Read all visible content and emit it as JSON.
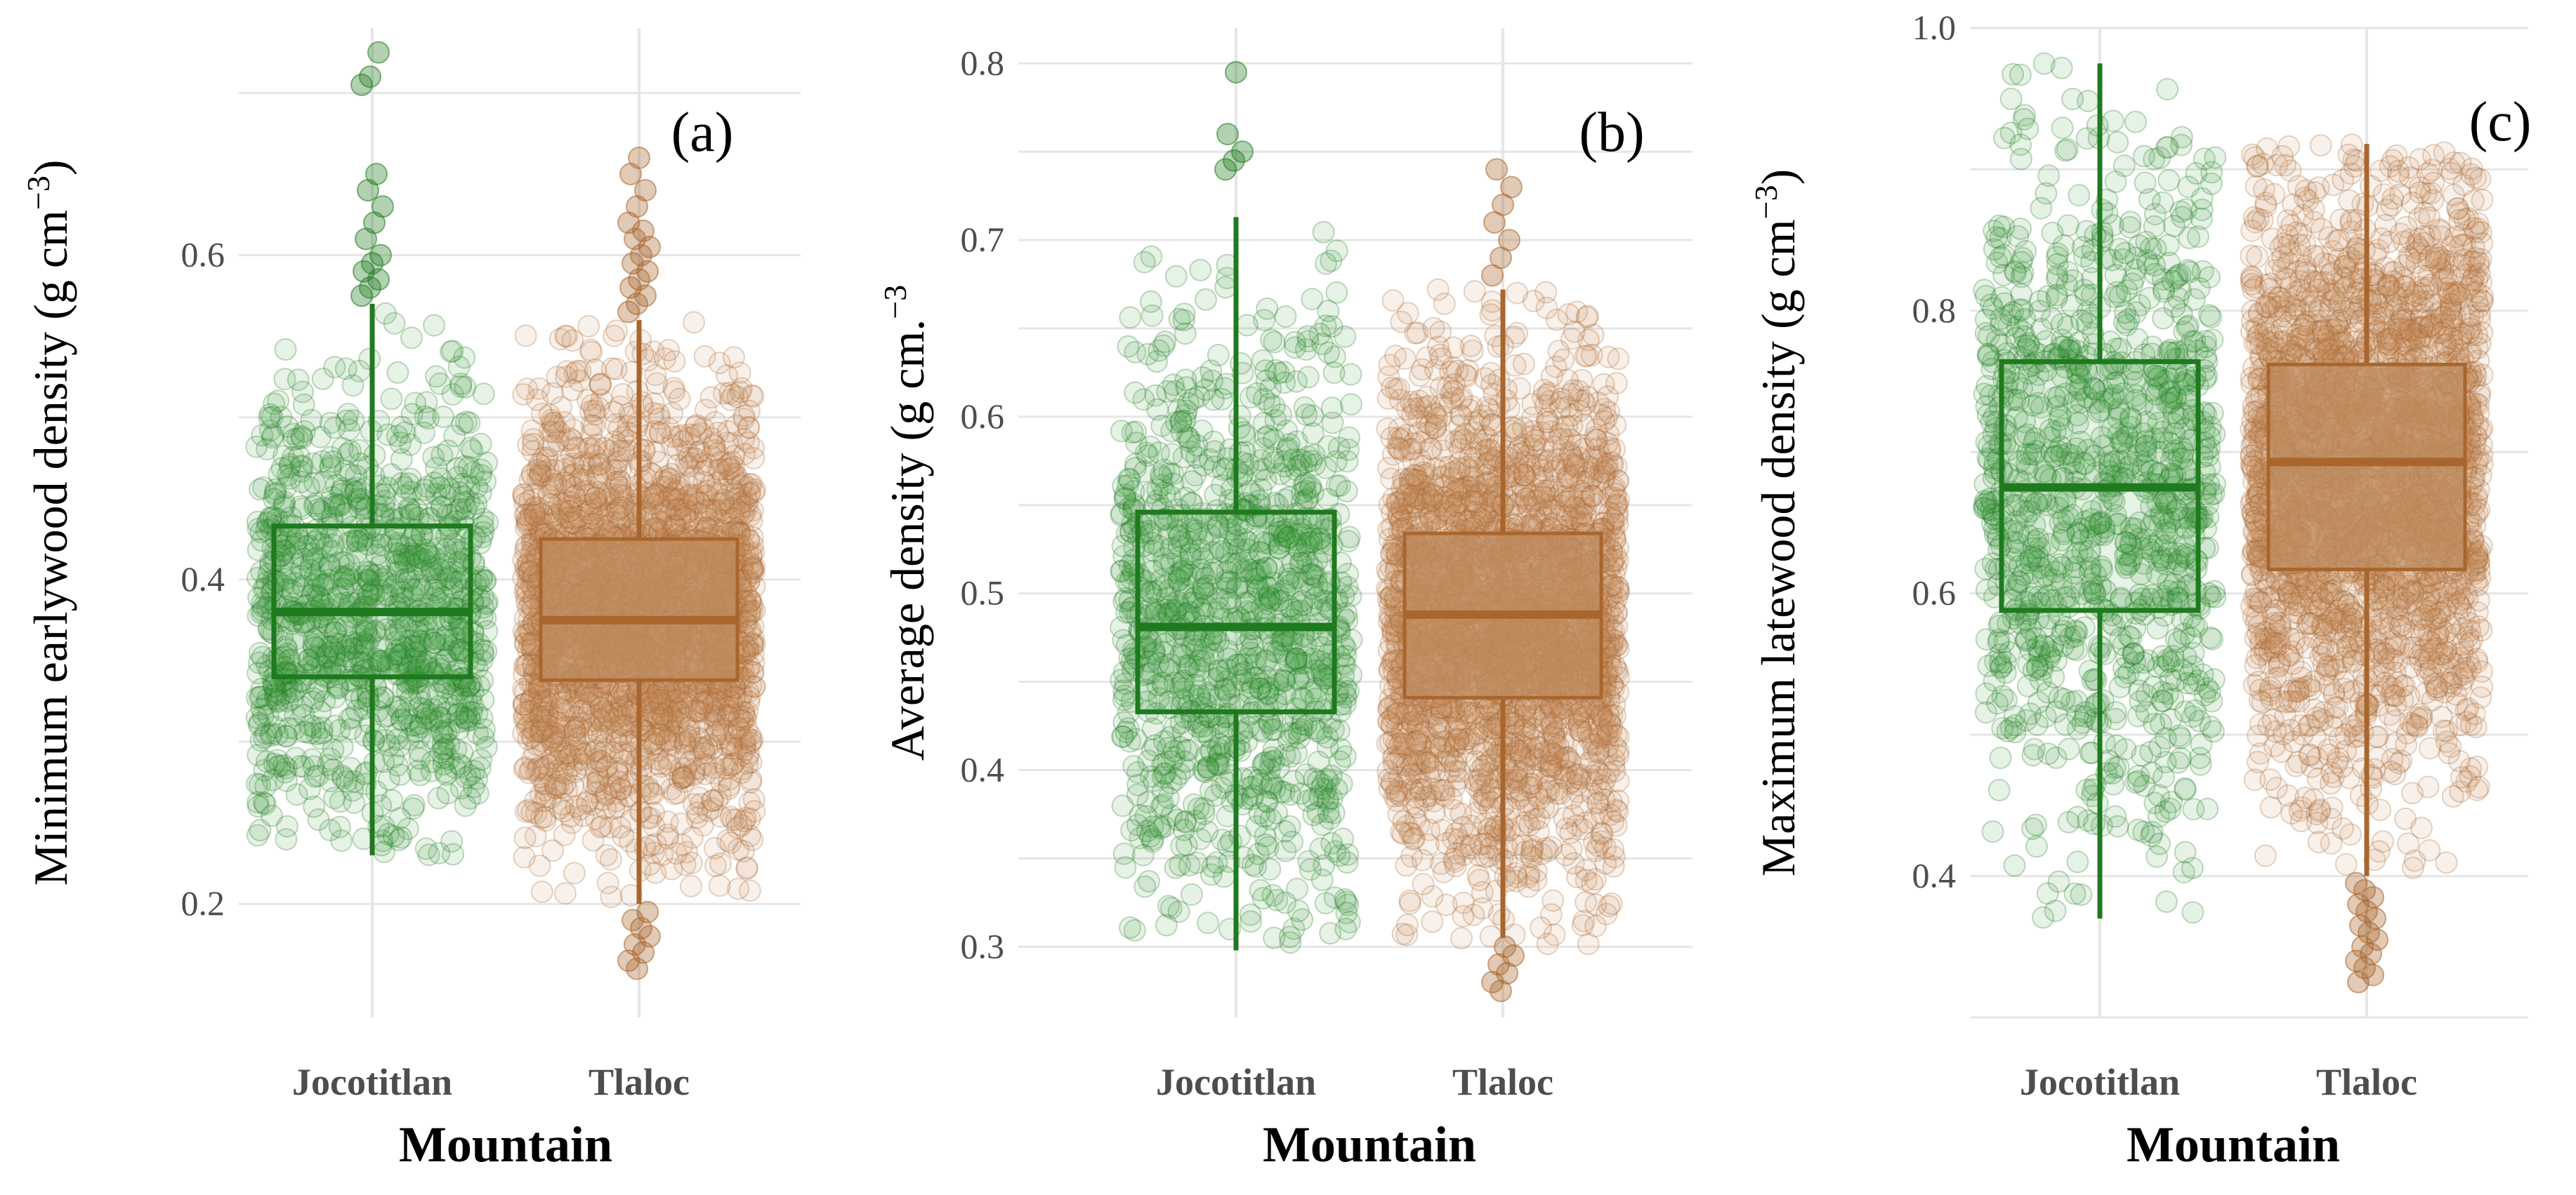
{
  "colors": {
    "jocotitlan": "#1f7a1f",
    "jocotitlan_fill": "#3c9a3c",
    "tlaloc": "#a8662e",
    "tlaloc_fill": "#c99466",
    "grid": "#e6e6e6"
  },
  "chart_data": [
    {
      "type": "boxplot",
      "panel_tag": "(a)",
      "ylabel_main": "Minimum earlywood density (g cm",
      "ylabel_sup": "−3",
      "ylabel_end": ")",
      "xlabel": "Mountain",
      "categories": [
        "Jocotitlan",
        "Tlaloc"
      ],
      "ylim": [
        0.13,
        0.74
      ],
      "yticks": [
        0.2,
        0.4,
        0.6
      ],
      "ytick_labels": [
        "0.2",
        "0.4",
        "0.6"
      ],
      "boxes": [
        {
          "name": "Jocotitlan",
          "whisker_low": 0.23,
          "q1": 0.34,
          "median": 0.38,
          "q3": 0.433,
          "whisker_high": 0.57,
          "n_points": 1100,
          "spread_low": 0.23,
          "spread_high": 0.57,
          "outliers": [
            0.575,
            0.58,
            0.585,
            0.59,
            0.595,
            0.6,
            0.61,
            0.62,
            0.63,
            0.64,
            0.65,
            0.705,
            0.71,
            0.725
          ]
        },
        {
          "name": "Tlaloc",
          "whisker_low": 0.2,
          "q1": 0.338,
          "median": 0.375,
          "q3": 0.425,
          "whisker_high": 0.56,
          "n_points": 2600,
          "spread_low": 0.2,
          "spread_high": 0.56,
          "outliers": [
            0.565,
            0.57,
            0.575,
            0.58,
            0.585,
            0.59,
            0.595,
            0.6,
            0.605,
            0.61,
            0.615,
            0.62,
            0.63,
            0.64,
            0.65,
            0.66,
            0.195,
            0.19,
            0.185,
            0.18,
            0.175,
            0.17,
            0.165,
            0.16
          ]
        }
      ]
    },
    {
      "type": "boxplot",
      "panel_tag": "(b)",
      "ylabel_main": "Average density (g cm.",
      "ylabel_sup": "−3",
      "ylabel_end": "",
      "xlabel": "Mountain",
      "categories": [
        "Jocotitlan",
        "Tlaloc"
      ],
      "ylim": [
        0.26,
        0.82
      ],
      "yticks": [
        0.3,
        0.4,
        0.5,
        0.6,
        0.7,
        0.8
      ],
      "ytick_labels": [
        "0.3",
        "0.4",
        "0.5",
        "0.6",
        "0.7",
        "0.8"
      ],
      "boxes": [
        {
          "name": "Jocotitlan",
          "whisker_low": 0.298,
          "q1": 0.433,
          "median": 0.481,
          "q3": 0.546,
          "whisker_high": 0.713,
          "n_points": 1100,
          "spread_low": 0.3,
          "spread_high": 0.713,
          "outliers": [
            0.74,
            0.745,
            0.75,
            0.76,
            0.795
          ]
        },
        {
          "name": "Tlaloc",
          "whisker_low": 0.305,
          "q1": 0.441,
          "median": 0.488,
          "q3": 0.534,
          "whisker_high": 0.672,
          "n_points": 2600,
          "spread_low": 0.3,
          "spread_high": 0.672,
          "outliers": [
            0.68,
            0.69,
            0.7,
            0.71,
            0.72,
            0.73,
            0.74,
            0.3,
            0.295,
            0.29,
            0.285,
            0.28,
            0.275
          ]
        }
      ]
    },
    {
      "type": "boxplot",
      "panel_tag": "(c)",
      "ylabel_main": "Maximum latewood density (g cm",
      "ylabel_sup": "−3",
      "ylabel_end": ")",
      "xlabel": "Mountain",
      "categories": [
        "Jocotitlan",
        "Tlaloc"
      ],
      "ylim": [
        0.3,
        1.0
      ],
      "yticks": [
        0.4,
        0.6,
        0.8,
        1.0
      ],
      "ytick_labels": [
        "0.4",
        "0.6",
        "0.8",
        "1.0"
      ],
      "boxes": [
        {
          "name": "Jocotitlan",
          "whisker_low": 0.37,
          "q1": 0.588,
          "median": 0.675,
          "q3": 0.764,
          "whisker_high": 0.975,
          "n_points": 1100,
          "spread_low": 0.37,
          "spread_high": 0.975,
          "outliers": []
        },
        {
          "name": "Tlaloc",
          "whisker_low": 0.4,
          "q1": 0.617,
          "median": 0.693,
          "q3": 0.762,
          "whisker_high": 0.918,
          "n_points": 2600,
          "spread_low": 0.4,
          "spread_high": 0.918,
          "outliers": [
            0.395,
            0.39,
            0.385,
            0.38,
            0.375,
            0.37,
            0.365,
            0.36,
            0.355,
            0.35,
            0.345,
            0.34,
            0.335,
            0.33,
            0.325
          ]
        }
      ]
    }
  ]
}
